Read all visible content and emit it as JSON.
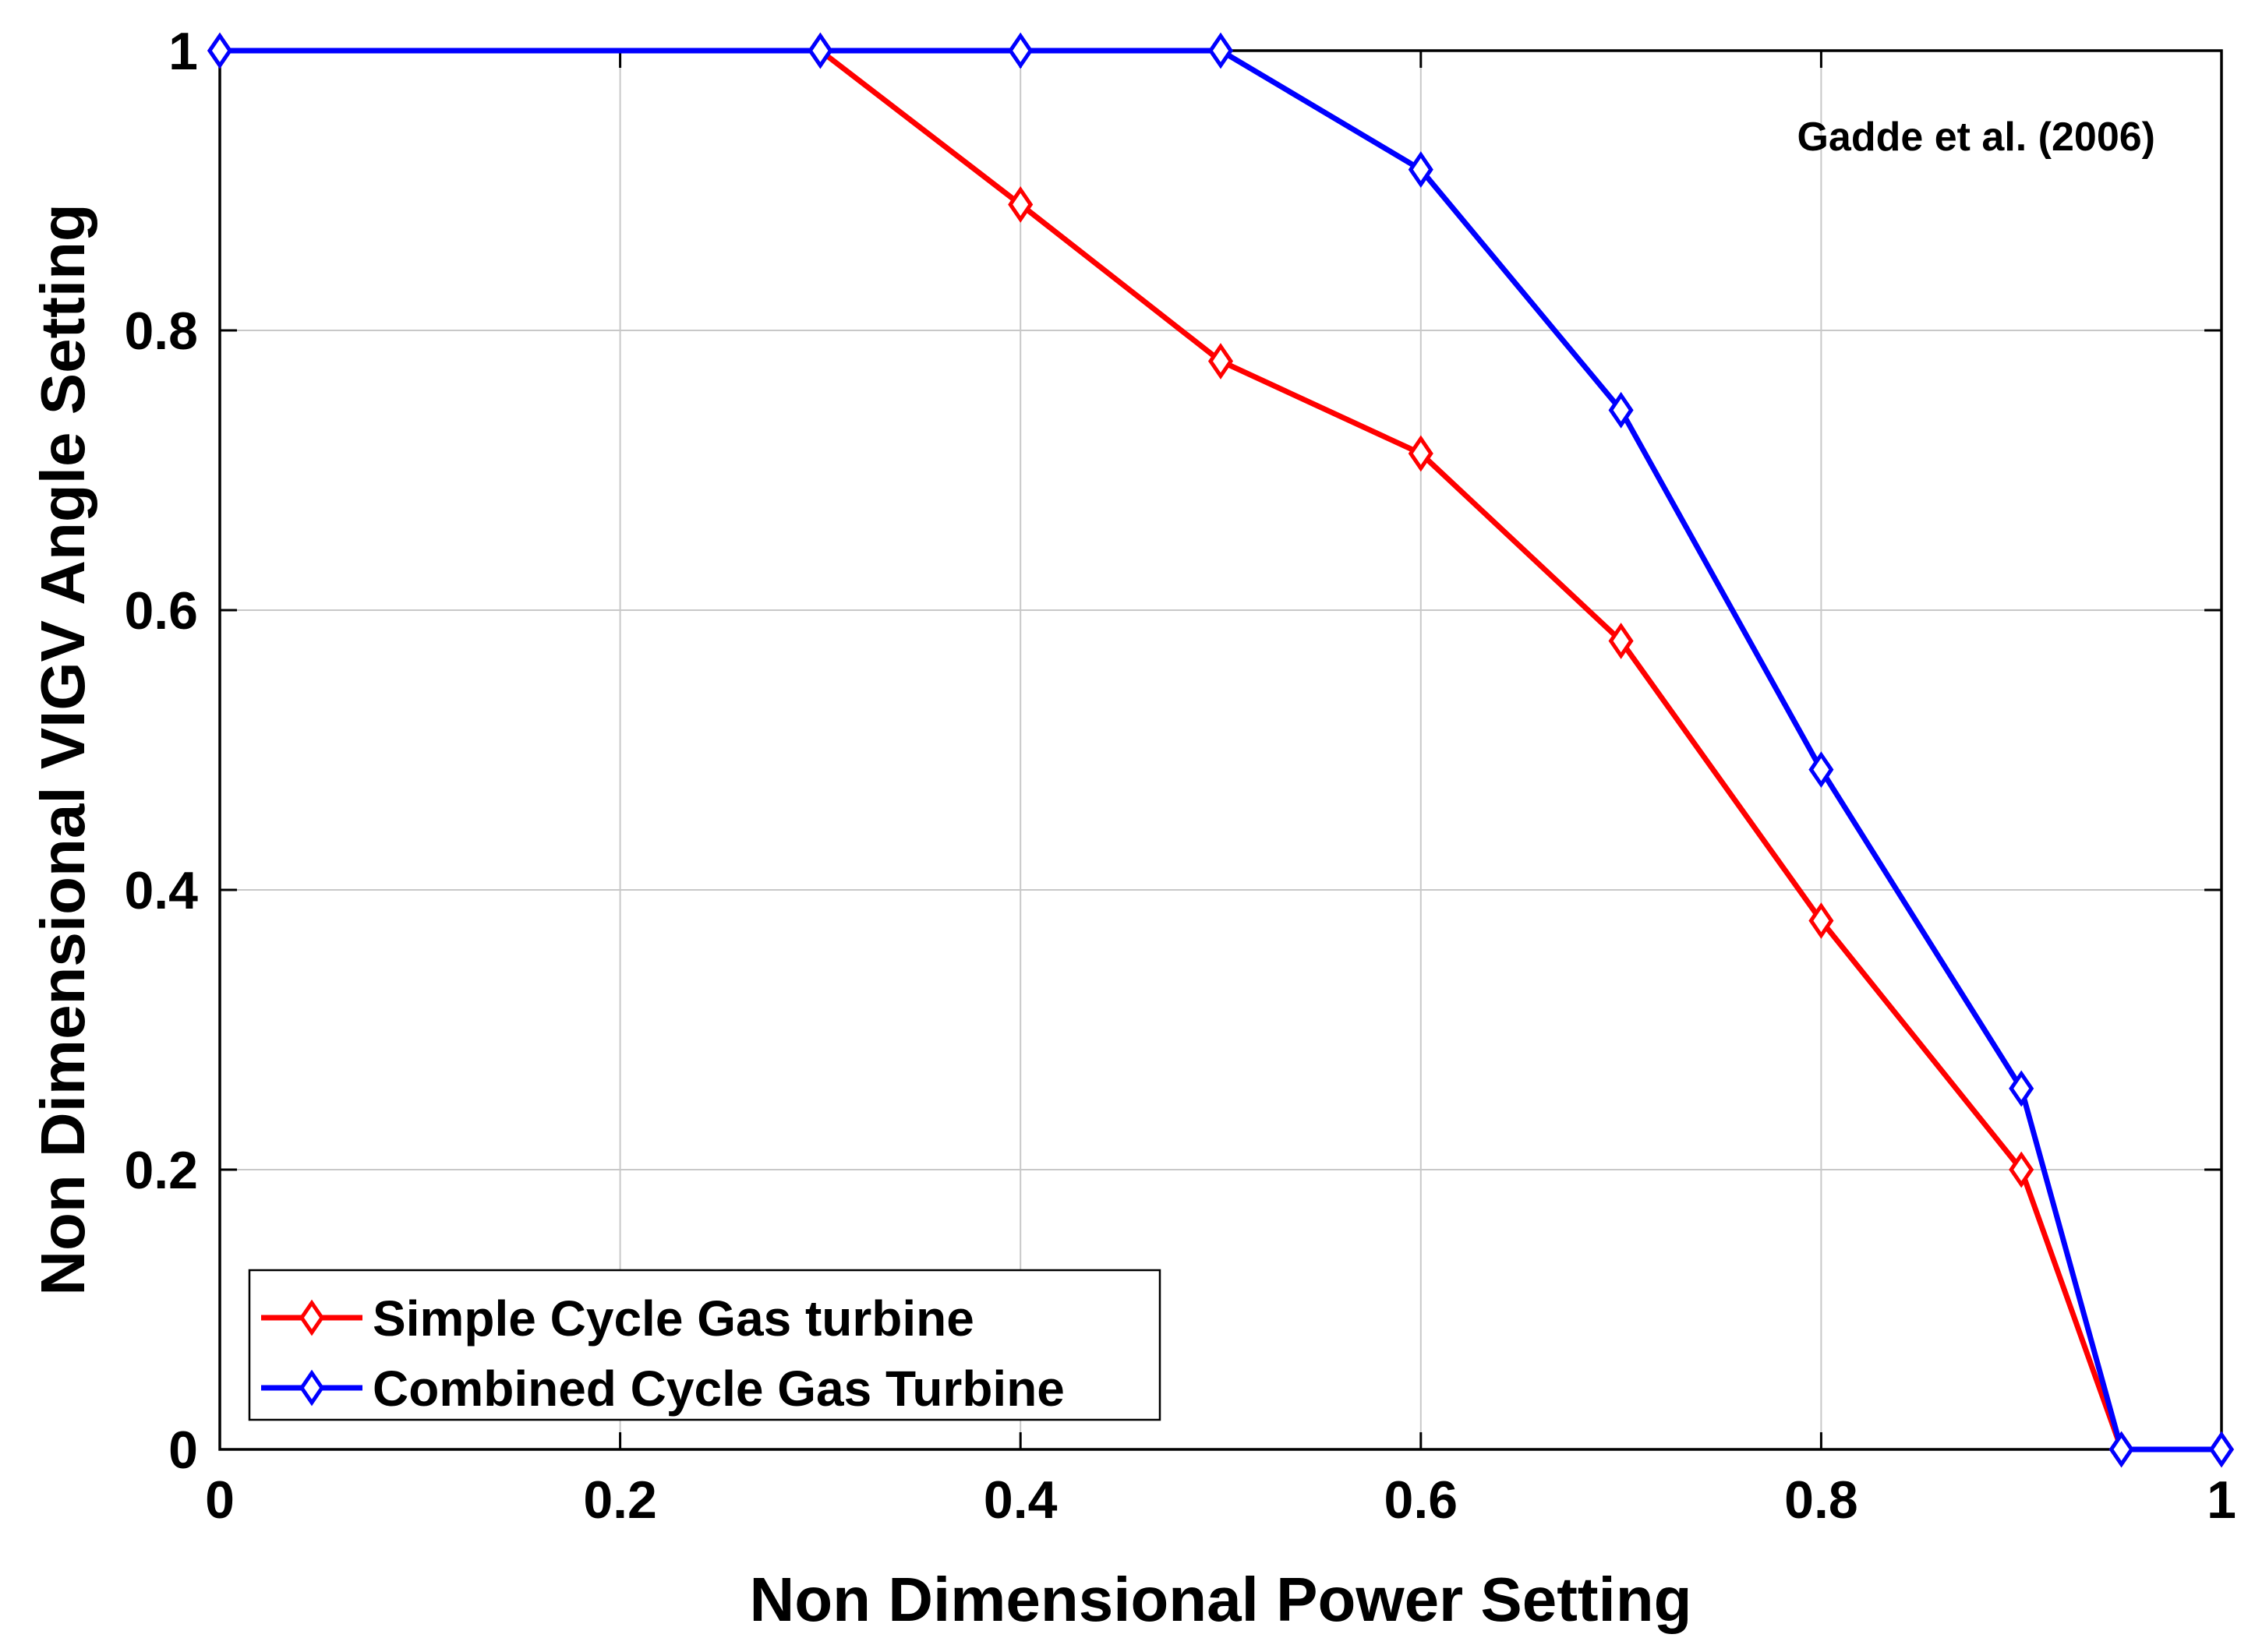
{
  "chart_data": {
    "type": "line",
    "title": "",
    "xlabel": "Non Dimensional Power Setting",
    "ylabel": "Non Dimensional VIGV Angle Setting",
    "xlim": [
      0,
      1
    ],
    "ylim": [
      0,
      1
    ],
    "xticks": [
      0,
      0.2,
      0.4,
      0.6,
      0.8,
      1
    ],
    "yticks": [
      0,
      0.2,
      0.4,
      0.6,
      0.8,
      1
    ],
    "xtick_labels": [
      "0",
      "0.2",
      "0.4",
      "0.6",
      "0.8",
      "1"
    ],
    "ytick_labels": [
      "0",
      "0.2",
      "0.4",
      "0.6",
      "0.8",
      "1"
    ],
    "grid": true,
    "annotation": "Gadde et al. (2006)",
    "legend_position": "bottom-left",
    "series": [
      {
        "name": "Simple Cycle Gas turbine",
        "color": "#ff0000",
        "marker": "diamond",
        "x": [
          0,
          0.3,
          0.4,
          0.5,
          0.6,
          0.7,
          0.8,
          0.9,
          0.95,
          1
        ],
        "y": [
          1,
          1,
          0.89,
          0.778,
          0.712,
          0.578,
          0.378,
          0.2,
          0,
          0
        ]
      },
      {
        "name": "Combined Cycle Gas Turbine",
        "color": "#0000ff",
        "marker": "diamond",
        "x": [
          0,
          0.3,
          0.4,
          0.5,
          0.6,
          0.7,
          0.8,
          0.9,
          0.95,
          1
        ],
        "y": [
          1,
          1,
          1,
          1,
          0.915,
          0.743,
          0.486,
          0.258,
          0,
          0
        ]
      }
    ]
  }
}
